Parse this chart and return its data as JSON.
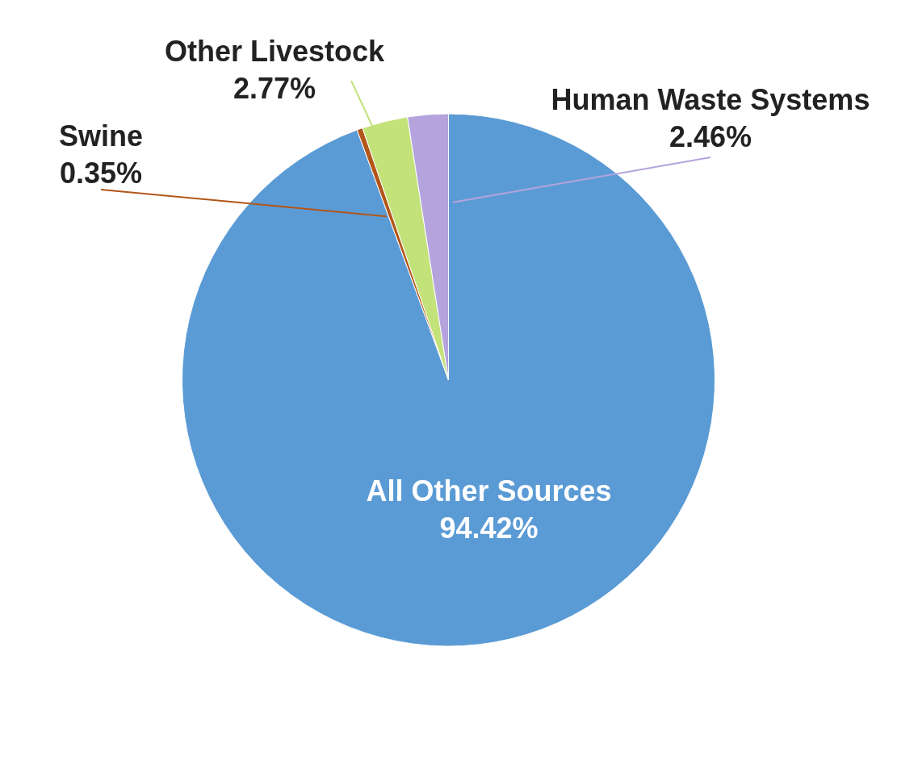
{
  "chart_data": {
    "type": "pie",
    "categories": [
      "All Other Sources",
      "Swine",
      "Other Livestock",
      "Human Waste Systems"
    ],
    "values": [
      94.42,
      0.35,
      2.77,
      2.46
    ],
    "value_labels": [
      "94.42%",
      "0.35%",
      "2.77%",
      "2.46%"
    ],
    "colors": [
      "#5b9bd5",
      "#b3561a",
      "#c3e27a",
      "#b4a3dc"
    ]
  }
}
